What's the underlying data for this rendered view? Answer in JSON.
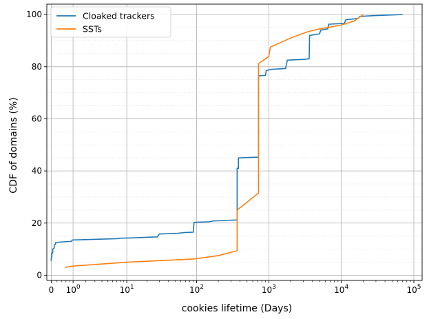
{
  "chart_data": {
    "type": "line",
    "title": "",
    "xlabel": "cookies lifetime (Days)",
    "ylabel": "CDF of domains (%)",
    "xscale": "symlog",
    "xlim": [
      -0.15,
      130000
    ],
    "ylim": [
      -2,
      104
    ],
    "grid": true,
    "legend_position": "top-left",
    "xticks": [
      {
        "value": 0,
        "base": "0",
        "exp": ""
      },
      {
        "value": 1,
        "base": "10",
        "exp": "0"
      },
      {
        "value": 10,
        "base": "10",
        "exp": "1"
      },
      {
        "value": 100,
        "base": "10",
        "exp": "2"
      },
      {
        "value": 1000,
        "base": "10",
        "exp": "3"
      },
      {
        "value": 10000,
        "base": "10",
        "exp": "4"
      },
      {
        "value": 100000,
        "base": "10",
        "exp": "5"
      }
    ],
    "yticks": [
      0,
      20,
      40,
      60,
      80,
      100
    ],
    "series": [
      {
        "name": "Cloaked trackers",
        "color": "#1f77b4",
        "points": [
          [
            0,
            5.5
          ],
          [
            0,
            6.5
          ],
          [
            0.02,
            7
          ],
          [
            0.02,
            8.5
          ],
          [
            0.05,
            8.5
          ],
          [
            0.05,
            10
          ],
          [
            0.1,
            10.5
          ],
          [
            0.1,
            11.5
          ],
          [
            0.15,
            12
          ],
          [
            0.15,
            12.5
          ],
          [
            0.3,
            12.7
          ],
          [
            0.9,
            13
          ],
          [
            0.95,
            13.5
          ],
          [
            7,
            14
          ],
          [
            8,
            14.2
          ],
          [
            12,
            14.3
          ],
          [
            18,
            14.5
          ],
          [
            28,
            14.7
          ],
          [
            30,
            15.8
          ],
          [
            55,
            16.1
          ],
          [
            70,
            16.4
          ],
          [
            90,
            16.5
          ],
          [
            92,
            20.3
          ],
          [
            150,
            20.5
          ],
          [
            170,
            20.8
          ],
          [
            250,
            21
          ],
          [
            365,
            21.2
          ],
          [
            365,
            41
          ],
          [
            380,
            41
          ],
          [
            380,
            45
          ],
          [
            720,
            45.3
          ],
          [
            720,
            76.5
          ],
          [
            900,
            76.7
          ],
          [
            920,
            78.5
          ],
          [
            1100,
            79
          ],
          [
            1700,
            79.3
          ],
          [
            1800,
            82.5
          ],
          [
            3000,
            82.8
          ],
          [
            3600,
            83
          ],
          [
            3650,
            92
          ],
          [
            5000,
            92.6
          ],
          [
            5200,
            94
          ],
          [
            6500,
            94.5
          ],
          [
            6700,
            96.3
          ],
          [
            11000,
            96.6
          ],
          [
            11500,
            98
          ],
          [
            17000,
            98.5
          ],
          [
            18000,
            99.3
          ],
          [
            28000,
            99.6
          ],
          [
            70000,
            100
          ]
        ]
      },
      {
        "name": "SSTs",
        "color": "#ff7f0e",
        "points": [
          [
            0.55,
            3
          ],
          [
            1,
            3.5
          ],
          [
            10,
            5
          ],
          [
            90,
            6.2
          ],
          [
            200,
            7.5
          ],
          [
            365,
            9.4
          ],
          [
            365,
            25
          ],
          [
            500,
            28
          ],
          [
            720,
            31.5
          ],
          [
            720,
            81.2
          ],
          [
            900,
            83
          ],
          [
            1000,
            84
          ],
          [
            1050,
            87.5
          ],
          [
            2000,
            91
          ],
          [
            3500,
            93.5
          ],
          [
            5000,
            94.5
          ],
          [
            8000,
            95.5
          ],
          [
            10000,
            96
          ],
          [
            15000,
            97.5
          ],
          [
            20000,
            100
          ]
        ]
      }
    ]
  }
}
